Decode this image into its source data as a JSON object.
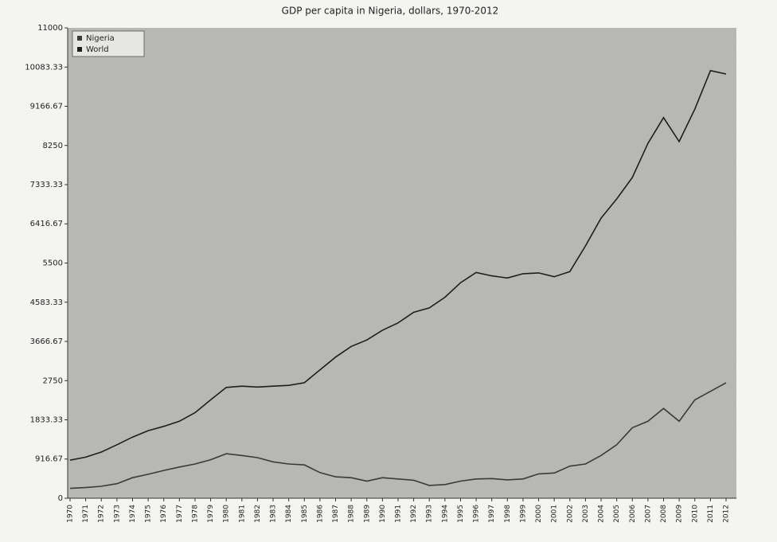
{
  "chart_data": {
    "type": "line",
    "title": "GDP per capita in Nigeria, dollars, 1970-2012",
    "categories": [
      "1970",
      "1971",
      "1972",
      "1973",
      "1974",
      "1975",
      "1976",
      "1977",
      "1978",
      "1979",
      "1980",
      "1981",
      "1982",
      "1983",
      "1984",
      "1985",
      "1986",
      "1987",
      "1988",
      "1989",
      "1990",
      "1991",
      "1992",
      "1993",
      "1994",
      "1995",
      "1996",
      "1997",
      "1998",
      "1999",
      "2000",
      "2001",
      "2002",
      "2003",
      "2004",
      "2005",
      "2006",
      "2007",
      "2008",
      "2009",
      "2010",
      "2011",
      "2012"
    ],
    "series": [
      {
        "name": "Nigeria",
        "color": "#3a3a3a",
        "values": [
          230,
          250,
          280,
          340,
          480,
          560,
          650,
          730,
          800,
          900,
          1040,
          1000,
          950,
          850,
          800,
          780,
          600,
          500,
          480,
          400,
          480,
          450,
          420,
          300,
          320,
          400,
          450,
          460,
          430,
          450,
          570,
          590,
          750,
          800,
          1000,
          1250,
          1650,
          1800,
          2100,
          1800,
          2300,
          2500,
          2700
        ]
      },
      {
        "name": "World",
        "color": "#1e1e1e",
        "values": [
          890,
          960,
          1080,
          1250,
          1430,
          1580,
          1680,
          1800,
          2000,
          2300,
          2590,
          2620,
          2600,
          2620,
          2640,
          2700,
          3000,
          3300,
          3550,
          3700,
          3930,
          4100,
          4350,
          4450,
          4700,
          5040,
          5280,
          5200,
          5150,
          5250,
          5270,
          5180,
          5300,
          5900,
          6550,
          7000,
          7500,
          8300,
          8900,
          8340,
          9100,
          10000,
          9920
        ]
      }
    ],
    "ylim": [
      0,
      11000
    ],
    "yticks": [
      0,
      916.67,
      1833.33,
      2750,
      3666.67,
      4583.33,
      5500,
      6416.67,
      7333.33,
      8250,
      9166.67,
      10083.33,
      11000
    ],
    "grid": false,
    "legend": "top-left"
  }
}
